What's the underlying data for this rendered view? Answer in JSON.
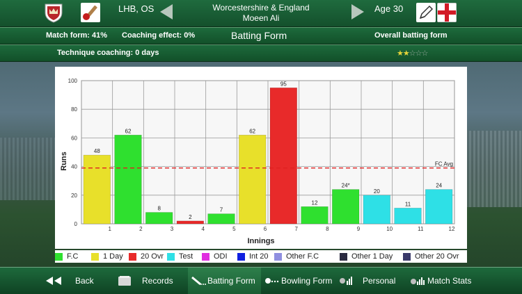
{
  "header": {
    "handedness": "LHB, OS",
    "team_line1": "Worcestershire & England",
    "team_line2": "Moeen Ali",
    "age": "Age 30"
  },
  "stats_bar": {
    "match_form": "Match form: 41%",
    "coaching_effect": "Coaching effect: 0%",
    "title": "Batting Form",
    "overall": "Overall batting form",
    "technique": "Technique coaching: 0 days",
    "stars_filled": 2,
    "stars_total": 5,
    "stars_text": "★★☆☆☆"
  },
  "chart_data": {
    "type": "bar",
    "xlabel": "Innings",
    "ylabel": "Runs",
    "ylim": [
      0,
      100
    ],
    "yticks": [
      0,
      20,
      40,
      60,
      80,
      100
    ],
    "categories": [
      "1",
      "2",
      "3",
      "4",
      "5",
      "6",
      "7",
      "8",
      "9",
      "10",
      "11",
      "12"
    ],
    "values": [
      48,
      62,
      8,
      2,
      7,
      62,
      95,
      12,
      24,
      20,
      11,
      24
    ],
    "value_labels": [
      "48",
      "62",
      "8",
      "2",
      "7",
      "62",
      "95",
      "12",
      "24*",
      "20",
      "11",
      "24"
    ],
    "formats": [
      "1 Day",
      "F.C",
      "F.C",
      "20 Ovr",
      "F.C",
      "1 Day",
      "20 Ovr",
      "F.C",
      "F.C",
      "Test",
      "Test",
      "Test"
    ],
    "reference_line": {
      "label": "FC Avg",
      "value": 39,
      "color": "#e02020"
    }
  },
  "legend": [
    {
      "label": "F.C",
      "color": "#2fe02f"
    },
    {
      "label": "1 Day",
      "color": "#e8e02a"
    },
    {
      "label": "20 Ovr",
      "color": "#e82a2a"
    },
    {
      "label": "Test",
      "color": "#2ee0e6"
    },
    {
      "label": "ODI",
      "color": "#e02ee0"
    },
    {
      "label": "Int 20",
      "color": "#1020e0"
    },
    {
      "label": "Other F.C",
      "color": "#8f8fe0"
    },
    {
      "label": "Other 1 Day",
      "color": "#2a2a40"
    },
    {
      "label": "Other 20 Ovr",
      "color": "#3a3a6a"
    }
  ],
  "nav": {
    "back": "Back",
    "records": "Records",
    "batting_form": "Batting Form",
    "bowling_form": "Bowling Form",
    "personal": "Personal",
    "match_stats": "Match Stats"
  }
}
